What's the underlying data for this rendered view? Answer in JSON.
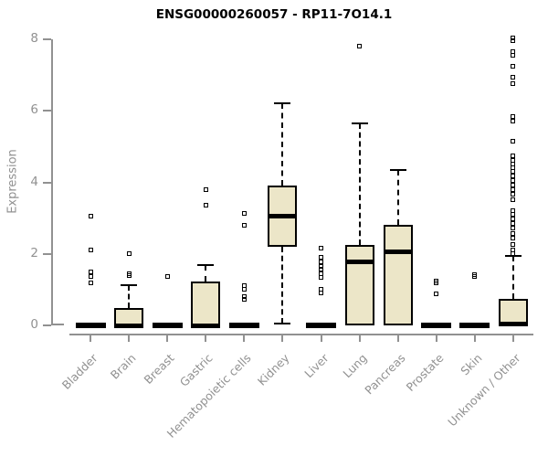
{
  "title": "ENSG00000260057 - RP11-7O14.1",
  "colors": {
    "box_fill": "#ece6c8",
    "box_border": "#000000",
    "axis": "#919191",
    "title_text": "#000000",
    "background": "#ffffff"
  },
  "chart_data": {
    "type": "boxplot",
    "title": "ENSG00000260057 - RP11-7O14.1",
    "xlabel": "",
    "ylabel": "Expression",
    "ylim": [
      0,
      8
    ],
    "yticks": [
      0,
      2,
      4,
      6,
      8
    ],
    "grid": false,
    "legend": "none",
    "categories": [
      "Bladder",
      "Brain",
      "Breast",
      "Gastric",
      "Hematopoietic cells",
      "Kidney",
      "Liver",
      "Lung",
      "Pancreas",
      "Prostate",
      "Skin",
      "Unknown / Other"
    ],
    "series": [
      {
        "label": "Bladder",
        "q1": 0,
        "median": 0,
        "q3": 0,
        "whisker_low": 0,
        "whisker_high": 0,
        "outliers": [
          3.05,
          2.1,
          1.5,
          1.38,
          1.18
        ]
      },
      {
        "label": "Brain",
        "q1": 0,
        "median": 0,
        "q3": 0.48,
        "whisker_low": 0,
        "whisker_high": 1.13,
        "outliers": [
          2.0,
          1.45,
          1.4
        ]
      },
      {
        "label": "Breast",
        "q1": 0,
        "median": 0,
        "q3": 0,
        "whisker_low": 0,
        "whisker_high": 0,
        "outliers": [
          1.37
        ]
      },
      {
        "label": "Gastric",
        "q1": 0,
        "median": 0,
        "q3": 1.22,
        "whisker_low": 0,
        "whisker_high": 1.69,
        "outliers": [
          3.8,
          3.35
        ]
      },
      {
        "label": "Hematopoietic cells",
        "q1": 0,
        "median": 0,
        "q3": 0,
        "whisker_low": 0,
        "whisker_high": 0,
        "outliers": [
          3.14,
          2.81,
          1.12,
          1.02,
          0.8,
          0.72
        ]
      },
      {
        "label": "Kidney",
        "q1": 2.2,
        "median": 3.05,
        "q3": 3.9,
        "whisker_low": 0.05,
        "whisker_high": 6.2,
        "outliers": []
      },
      {
        "label": "Liver",
        "q1": 0,
        "median": 0,
        "q3": 0,
        "whisker_low": 0,
        "whisker_high": 0,
        "outliers": [
          2.15,
          1.9,
          1.77,
          1.66,
          1.56,
          1.45,
          1.35,
          1.0,
          0.9
        ]
      },
      {
        "label": "Lung",
        "q1": 0,
        "median": 1.78,
        "q3": 2.25,
        "whisker_low": 0,
        "whisker_high": 5.65,
        "outliers": [
          7.8
        ]
      },
      {
        "label": "Pancreas",
        "q1": 0,
        "median": 2.07,
        "q3": 2.82,
        "whisker_low": 0,
        "whisker_high": 4.35,
        "outliers": []
      },
      {
        "label": "Prostate",
        "q1": 0,
        "median": 0,
        "q3": 0,
        "whisker_low": 0,
        "whisker_high": 0,
        "outliers": [
          1.25,
          1.18,
          0.88
        ]
      },
      {
        "label": "Skin",
        "q1": 0,
        "median": 0,
        "q3": 0,
        "whisker_low": 0,
        "whisker_high": 0,
        "outliers": [
          1.42,
          1.36
        ]
      },
      {
        "label": "Unknown / Other",
        "q1": 0,
        "median": 0.05,
        "q3": 0.75,
        "whisker_low": 0,
        "whisker_high": 1.95,
        "outliers": [
          8.05,
          7.95,
          7.65,
          7.55,
          7.25,
          6.95,
          6.75,
          5.85,
          5.7,
          5.15,
          4.75,
          4.62,
          4.5,
          4.4,
          4.3,
          4.17,
          4.05,
          3.92,
          3.8,
          3.67,
          3.52,
          3.22,
          3.1,
          2.97,
          2.85,
          2.72,
          2.58,
          2.45,
          2.25,
          2.12,
          2.0
        ]
      }
    ]
  }
}
